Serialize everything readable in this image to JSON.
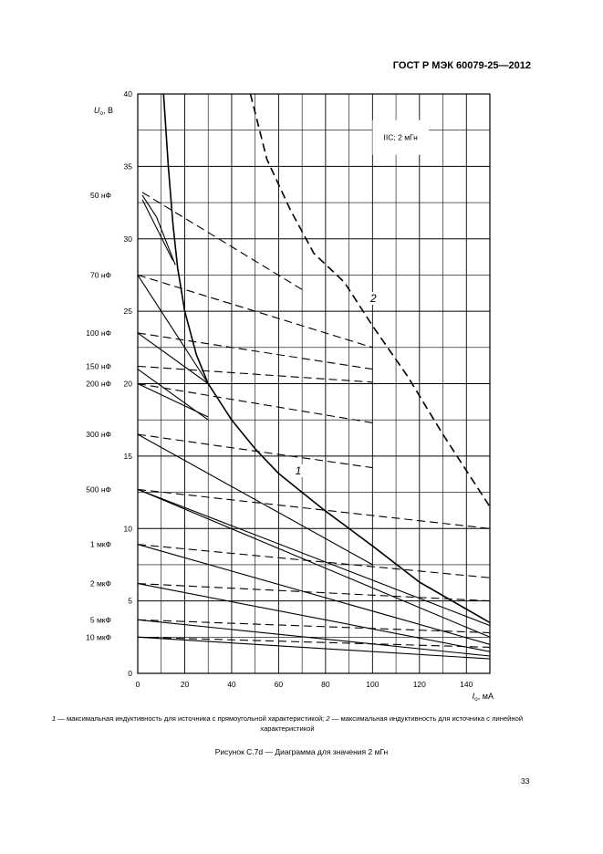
{
  "header": {
    "standard": "ГОСТ Р МЭК 60079-25—2012"
  },
  "caption": {
    "note_num_1": "1",
    "note_text_1": " — максимальная индуктивность для источника с прямоугольной характеристикой; ",
    "note_num_2": "2",
    "note_text_2": " — максимальная индуктивность для источника с линейной характеристикой",
    "figure_title": "Рисунок С.7d — Диаграмма для значения 2 мГн"
  },
  "page_number": "33",
  "chart_data": {
    "type": "line",
    "title": "",
    "ylabel_main": "U",
    "ylabel_sub": "o",
    "ylabel_unit": ", В",
    "xlabel_main": "I",
    "xlabel_sub": "o",
    "xlabel_unit": ", мА",
    "xlim": [
      0,
      150
    ],
    "ylim": [
      0,
      40
    ],
    "x_ticks": [
      0,
      20,
      40,
      60,
      80,
      100,
      120,
      140
    ],
    "y_ticks": [
      0,
      5,
      10,
      15,
      20,
      25,
      30,
      35,
      40
    ],
    "grid": true,
    "legend_box": "IIC; 2 мГн",
    "capacitance_labels": [
      {
        "label": "50 нФ",
        "u": 33
      },
      {
        "label": "70 нФ",
        "u": 27.5
      },
      {
        "label": "100 нФ",
        "u": 23.5
      },
      {
        "label": "150 нФ",
        "u": 21.2
      },
      {
        "label": "200 нФ",
        "u": 20
      },
      {
        "label": "300 нФ",
        "u": 16.5
      },
      {
        "label": "500 нФ",
        "u": 12.7
      },
      {
        "label": "1 мкФ",
        "u": 8.9
      },
      {
        "label": "2 мкФ",
        "u": 6.2
      },
      {
        "label": "5 мкФ",
        "u": 3.7
      },
      {
        "label": "10 мкФ",
        "u": 2.5
      }
    ],
    "series": [
      {
        "id": "curve-1",
        "label": "1",
        "style": "solid",
        "width": 1.6,
        "x": [
          11,
          13,
          15,
          17,
          20,
          25,
          30,
          40,
          50,
          60,
          70,
          80,
          100,
          120,
          150
        ],
        "y": [
          40,
          35,
          31,
          28,
          25,
          22,
          20,
          17.5,
          15.5,
          13.8,
          12.5,
          11.2,
          8.8,
          6.3,
          3.5
        ]
      },
      {
        "id": "curve-2",
        "label": "2",
        "style": "dashed",
        "width": 1.6,
        "x": [
          48,
          55,
          65,
          75,
          88,
          100,
          115,
          130,
          150
        ],
        "y": [
          40,
          35.5,
          32,
          29,
          27,
          24,
          20.5,
          16.5,
          11.5
        ]
      },
      {
        "id": "c50-solid-a",
        "style": "solid",
        "x": [
          2,
          15
        ],
        "y": [
          32.7,
          28.5
        ]
      },
      {
        "id": "c50-solid-b",
        "style": "solid",
        "x": [
          2,
          8,
          16
        ],
        "y": [
          33,
          31.5,
          28.2
        ]
      },
      {
        "id": "c50-dashed",
        "style": "dashed",
        "x": [
          2,
          70
        ],
        "y": [
          33.2,
          26.5
        ]
      },
      {
        "id": "c70-solid",
        "style": "solid",
        "x": [
          0,
          30
        ],
        "y": [
          27.5,
          20
        ]
      },
      {
        "id": "c70-dashed",
        "style": "dashed",
        "x": [
          0,
          100
        ],
        "y": [
          27.5,
          22.5
        ]
      },
      {
        "id": "c100-solid",
        "style": "solid",
        "x": [
          0,
          30
        ],
        "y": [
          23.5,
          20
        ]
      },
      {
        "id": "c100-dashed",
        "style": "dashed",
        "x": [
          0,
          100
        ],
        "y": [
          23.5,
          21
        ]
      },
      {
        "id": "c150-solid",
        "style": "solid",
        "x": [
          0,
          30
        ],
        "y": [
          21,
          17.5
        ]
      },
      {
        "id": "c150-dashed",
        "style": "dashed",
        "x": [
          0,
          100
        ],
        "y": [
          21.2,
          20.1
        ]
      },
      {
        "id": "c200-solid",
        "style": "solid",
        "x": [
          0,
          30
        ],
        "y": [
          20,
          17.7
        ]
      },
      {
        "id": "c200-dashed",
        "style": "dashed",
        "x": [
          0,
          100
        ],
        "y": [
          20,
          17.3
        ]
      },
      {
        "id": "c300-solid",
        "style": "solid",
        "x": [
          0,
          100
        ],
        "y": [
          16.5,
          7.5
        ]
      },
      {
        "id": "c300-dashed",
        "style": "dashed",
        "x": [
          0,
          100
        ],
        "y": [
          16.5,
          14.2
        ]
      },
      {
        "id": "c500-solid-a",
        "style": "solid",
        "x": [
          0,
          150
        ],
        "y": [
          12.7,
          3.3
        ]
      },
      {
        "id": "c500-solid-b",
        "style": "solid",
        "x": [
          0,
          150
        ],
        "y": [
          12.7,
          2.5
        ]
      },
      {
        "id": "c500-dashed",
        "style": "dashed",
        "x": [
          0,
          150
        ],
        "y": [
          12.7,
          10
        ]
      },
      {
        "id": "c1u-solid",
        "style": "solid",
        "x": [
          0,
          150
        ],
        "y": [
          8.9,
          2
        ]
      },
      {
        "id": "c1u-dashed",
        "style": "dashed",
        "x": [
          0,
          150
        ],
        "y": [
          8.9,
          6.6
        ]
      },
      {
        "id": "c2u-solid",
        "style": "solid",
        "x": [
          0,
          150
        ],
        "y": [
          6.2,
          1.5
        ]
      },
      {
        "id": "c2u-dashed",
        "style": "dashed",
        "x": [
          0,
          150
        ],
        "y": [
          6.2,
          5
        ]
      },
      {
        "id": "c5u-solid",
        "style": "solid",
        "x": [
          0,
          150
        ],
        "y": [
          3.7,
          1.2
        ]
      },
      {
        "id": "c5u-dashed",
        "style": "dashed",
        "x": [
          0,
          150
        ],
        "y": [
          3.7,
          2.8
        ]
      },
      {
        "id": "c10u-solid",
        "style": "solid",
        "x": [
          0,
          150
        ],
        "y": [
          2.5,
          1
        ]
      },
      {
        "id": "c10u-dashed",
        "style": "dashed",
        "x": [
          0,
          150
        ],
        "y": [
          2.5,
          1.8
        ]
      }
    ],
    "curve_labels": [
      {
        "text": "1",
        "x": 68,
        "y": 13.8
      },
      {
        "text": "2",
        "x": 100,
        "y": 25.7
      }
    ]
  }
}
